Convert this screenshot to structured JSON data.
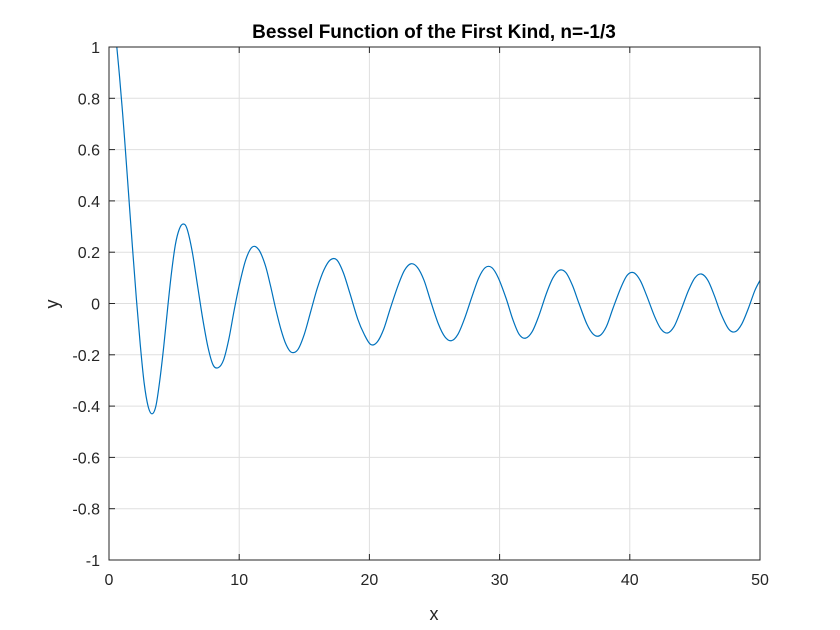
{
  "chart_data": {
    "type": "line",
    "title": "Bessel Function of the First Kind, n=-1/3",
    "xlabel": "x",
    "ylabel": "y",
    "xlim": [
      0,
      50
    ],
    "ylim": [
      -1,
      1
    ],
    "xticks": [
      0,
      10,
      20,
      30,
      40,
      50
    ],
    "yticks": [
      -1,
      -0.8,
      -0.6,
      -0.4,
      -0.2,
      0,
      0.2,
      0.4,
      0.6,
      0.8,
      1
    ],
    "xtick_labels": [
      "0",
      "10",
      "20",
      "30",
      "40",
      "50"
    ],
    "ytick_labels": [
      "-1",
      "-0.8",
      "-0.6",
      "-0.4",
      "-0.2",
      "0",
      "0.2",
      "0.4",
      "0.6",
      "0.8",
      "1"
    ],
    "grid": true,
    "series": [
      {
        "color": "#0072bd",
        "x": [
          0.6,
          0.8,
          1.0,
          1.2,
          1.5,
          1.8,
          2.1,
          2.4,
          2.7,
          3.0,
          3.3,
          3.6,
          3.9,
          4.2,
          4.5,
          4.8,
          5.1,
          5.4,
          5.7,
          6.0,
          6.4,
          6.8,
          7.2,
          7.6,
          8.0,
          8.4,
          8.8,
          9.2,
          9.6,
          10.0,
          10.5,
          11.0,
          11.5,
          12.0,
          12.4,
          12.8,
          13.2,
          13.6,
          14.0,
          14.5,
          15.0,
          15.5,
          16.0,
          16.5,
          17.0,
          17.5,
          18.0,
          18.5,
          19.1,
          19.6,
          20.1,
          20.6,
          21.1,
          21.6,
          22.2,
          22.7,
          23.2,
          23.7,
          24.2,
          24.7,
          25.3,
          25.8,
          26.3,
          26.8,
          27.3,
          27.9,
          28.4,
          28.9,
          29.4,
          29.9,
          30.5,
          31.0,
          31.5,
          32.0,
          32.5,
          33.0,
          33.6,
          34.1,
          34.6,
          35.1,
          35.6,
          36.1,
          36.7,
          37.2,
          37.7,
          38.2,
          38.7,
          39.3,
          39.8,
          40.3,
          40.8,
          41.3,
          41.9,
          42.4,
          42.9,
          43.4,
          43.9,
          44.5,
          45.0,
          45.5,
          46.0,
          46.5,
          47.0,
          47.6,
          48.1,
          48.6,
          49.1,
          49.6,
          50.0
        ],
        "y": [
          1.0,
          0.89,
          0.77,
          0.64,
          0.43,
          0.22,
          0.02,
          -0.16,
          -0.31,
          -0.4,
          -0.43,
          -0.4,
          -0.3,
          -0.17,
          -0.02,
          0.12,
          0.23,
          0.29,
          0.31,
          0.29,
          0.2,
          0.07,
          -0.06,
          -0.17,
          -0.24,
          -0.25,
          -0.22,
          -0.14,
          -0.03,
          0.07,
          0.17,
          0.22,
          0.21,
          0.15,
          0.07,
          -0.02,
          -0.1,
          -0.16,
          -0.19,
          -0.18,
          -0.12,
          -0.03,
          0.06,
          0.13,
          0.17,
          0.17,
          0.12,
          0.04,
          -0.06,
          -0.12,
          -0.16,
          -0.15,
          -0.1,
          -0.02,
          0.07,
          0.13,
          0.155,
          0.14,
          0.09,
          0.01,
          -0.08,
          -0.13,
          -0.145,
          -0.12,
          -0.06,
          0.03,
          0.1,
          0.14,
          0.14,
          0.1,
          0.02,
          -0.06,
          -0.12,
          -0.135,
          -0.11,
          -0.05,
          0.04,
          0.1,
          0.13,
          0.12,
          0.07,
          0.0,
          -0.08,
          -0.12,
          -0.125,
          -0.09,
          -0.02,
          0.06,
          0.11,
          0.12,
          0.09,
          0.03,
          -0.05,
          -0.1,
          -0.115,
          -0.09,
          -0.03,
          0.05,
          0.1,
          0.115,
          0.09,
          0.03,
          -0.04,
          -0.1,
          -0.11,
          -0.08,
          -0.02,
          0.05,
          0.09
        ]
      }
    ]
  }
}
